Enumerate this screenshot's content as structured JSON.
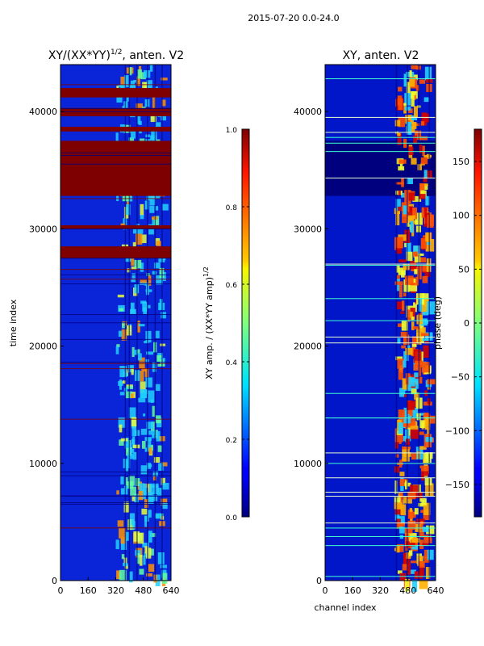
{
  "figure": {
    "suptitle": "2015-07-20 0.0-24.0"
  },
  "chart_data": [
    {
      "type": "heatmap",
      "title_main": "XY/(XX*YY)",
      "title_sup": "1/2",
      "title_tail": ", anten. V2",
      "xlabel": "",
      "ylabel": "time index",
      "xlim": [
        0,
        640
      ],
      "ylim": [
        0,
        44000
      ],
      "xticks": [
        0,
        160,
        320,
        480,
        640
      ],
      "yticks": [
        0,
        10000,
        20000,
        30000,
        40000
      ],
      "saturated_time_bands": [
        [
          27500,
          28500
        ],
        [
          32800,
          37500
        ],
        [
          39600,
          40300
        ],
        [
          41200,
          42000
        ],
        [
          38300,
          38700
        ],
        [
          30000,
          30300
        ]
      ],
      "bright_channel_range": [
        320,
        620
      ],
      "colorbar": {
        "label_main": "XY amp. / (XX*YY amp)",
        "label_sup": "1/2",
        "min": 0.0,
        "max": 1.0,
        "ticks": [
          "0.0",
          "0.2",
          "0.4",
          "0.6",
          "0.8",
          "1.0"
        ],
        "tick_values": [
          0.0,
          0.2,
          0.4,
          0.6,
          0.8,
          1.0
        ]
      }
    },
    {
      "type": "heatmap",
      "title": "XY, anten. V2",
      "xlabel": "channel index",
      "ylabel": "",
      "xlim": [
        0,
        640
      ],
      "ylim": [
        0,
        44000
      ],
      "xticks": [
        0,
        160,
        320,
        480,
        640
      ],
      "yticks": [
        0,
        10000,
        20000,
        30000,
        40000
      ],
      "low_phase_time_band": [
        32800,
        37500
      ],
      "bright_channel_range": [
        400,
        620
      ],
      "colorbar": {
        "label": "phase (deg)",
        "min": -180,
        "max": 180,
        "ticks": [
          "−150",
          "−100",
          "−50",
          "0",
          "50",
          "100",
          "150"
        ],
        "tick_values": [
          -150,
          -100,
          -50,
          0,
          50,
          100,
          150
        ]
      }
    }
  ]
}
